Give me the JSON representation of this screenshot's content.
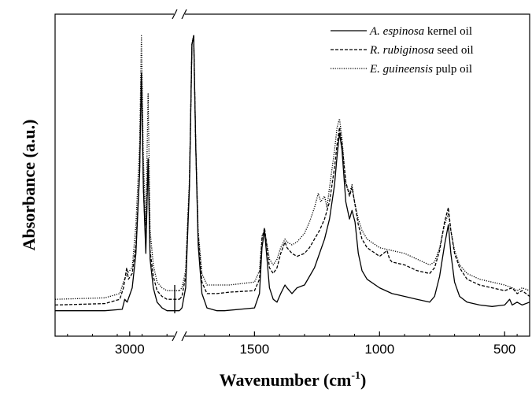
{
  "chart_data": {
    "type": "line",
    "xlabel": "Wavenumber (cm",
    "xlabel_sup": "-1",
    "xlabel_end": ")",
    "ylabel": "Absorbance (a.u.)",
    "x_axis_broken": true,
    "x_break_range": [
      2800,
      1800
    ],
    "x_axis_reversed": true,
    "xlim": [
      3300,
      400
    ],
    "y_ticks_labeled": false,
    "x_ticks": [
      {
        "value": 3000,
        "label": "3000"
      },
      {
        "value": 1500,
        "label": "1500"
      },
      {
        "value": 1000,
        "label": "1000"
      },
      {
        "value": 500,
        "label": "500"
      }
    ],
    "legend_position": "top-right",
    "series": [
      {
        "name": "kernel oil",
        "name_italic": "A. espinosa",
        "style": "solid",
        "points": [
          [
            3300,
            0.02
          ],
          [
            3100,
            0.02
          ],
          [
            3030,
            0.025
          ],
          [
            3020,
            0.06
          ],
          [
            3010,
            0.05
          ],
          [
            2990,
            0.1
          ],
          [
            2975,
            0.22
          ],
          [
            2960,
            0.5
          ],
          [
            2953,
            0.85
          ],
          [
            2945,
            0.45
          ],
          [
            2935,
            0.22
          ],
          [
            2926,
            0.55
          ],
          [
            2918,
            0.2
          ],
          [
            2905,
            0.1
          ],
          [
            2890,
            0.05
          ],
          [
            2870,
            0.03
          ],
          [
            2850,
            0.02
          ],
          [
            2800,
            0.02
          ],
          [
            1800,
            0.02
          ],
          [
            1790,
            0.03
          ],
          [
            1775,
            0.1
          ],
          [
            1760,
            0.45
          ],
          [
            1750,
            0.95
          ],
          [
            1743,
            0.98
          ],
          [
            1735,
            0.6
          ],
          [
            1725,
            0.25
          ],
          [
            1710,
            0.08
          ],
          [
            1690,
            0.03
          ],
          [
            1650,
            0.02
          ],
          [
            1620,
            0.02
          ],
          [
            1500,
            0.03
          ],
          [
            1480,
            0.08
          ],
          [
            1470,
            0.24
          ],
          [
            1460,
            0.3
          ],
          [
            1450,
            0.2
          ],
          [
            1440,
            0.1
          ],
          [
            1425,
            0.06
          ],
          [
            1410,
            0.05
          ],
          [
            1395,
            0.08
          ],
          [
            1378,
            0.11
          ],
          [
            1370,
            0.1
          ],
          [
            1350,
            0.08
          ],
          [
            1330,
            0.1
          ],
          [
            1300,
            0.11
          ],
          [
            1280,
            0.14
          ],
          [
            1260,
            0.17
          ],
          [
            1240,
            0.22
          ],
          [
            1220,
            0.27
          ],
          [
            1200,
            0.34
          ],
          [
            1180,
            0.46
          ],
          [
            1170,
            0.56
          ],
          [
            1160,
            0.64
          ],
          [
            1150,
            0.58
          ],
          [
            1135,
            0.4
          ],
          [
            1120,
            0.34
          ],
          [
            1110,
            0.37
          ],
          [
            1098,
            0.33
          ],
          [
            1085,
            0.22
          ],
          [
            1070,
            0.16
          ],
          [
            1050,
            0.13
          ],
          [
            1000,
            0.1
          ],
          [
            950,
            0.08
          ],
          [
            900,
            0.07
          ],
          [
            850,
            0.06
          ],
          [
            800,
            0.05
          ],
          [
            780,
            0.07
          ],
          [
            760,
            0.14
          ],
          [
            740,
            0.25
          ],
          [
            725,
            0.32
          ],
          [
            715,
            0.22
          ],
          [
            700,
            0.12
          ],
          [
            680,
            0.07
          ],
          [
            650,
            0.05
          ],
          [
            600,
            0.04
          ],
          [
            550,
            0.035
          ],
          [
            500,
            0.04
          ],
          [
            480,
            0.06
          ],
          [
            470,
            0.04
          ],
          [
            450,
            0.05
          ],
          [
            430,
            0.04
          ],
          [
            400,
            0.05
          ]
        ]
      },
      {
        "name": "seed oil",
        "name_italic": "R. rubiginosa",
        "style": "dashed",
        "points": [
          [
            3300,
            0.04
          ],
          [
            3100,
            0.045
          ],
          [
            3040,
            0.06
          ],
          [
            3025,
            0.1
          ],
          [
            3012,
            0.17
          ],
          [
            3005,
            0.13
          ],
          [
            2990,
            0.15
          ],
          [
            2975,
            0.25
          ],
          [
            2960,
            0.5
          ],
          [
            2953,
            0.85
          ],
          [
            2945,
            0.45
          ],
          [
            2935,
            0.25
          ],
          [
            2926,
            0.55
          ],
          [
            2918,
            0.23
          ],
          [
            2905,
            0.14
          ],
          [
            2890,
            0.09
          ],
          [
            2870,
            0.07
          ],
          [
            2850,
            0.06
          ],
          [
            2800,
            0.06
          ],
          [
            1800,
            0.06
          ],
          [
            1790,
            0.07
          ],
          [
            1775,
            0.14
          ],
          [
            1760,
            0.46
          ],
          [
            1750,
            0.95
          ],
          [
            1743,
            0.98
          ],
          [
            1735,
            0.6
          ],
          [
            1725,
            0.28
          ],
          [
            1710,
            0.12
          ],
          [
            1690,
            0.08
          ],
          [
            1650,
            0.08
          ],
          [
            1600,
            0.085
          ],
          [
            1500,
            0.09
          ],
          [
            1480,
            0.13
          ],
          [
            1470,
            0.27
          ],
          [
            1460,
            0.31
          ],
          [
            1450,
            0.24
          ],
          [
            1440,
            0.17
          ],
          [
            1425,
            0.15
          ],
          [
            1410,
            0.17
          ],
          [
            1395,
            0.22
          ],
          [
            1378,
            0.26
          ],
          [
            1370,
            0.24
          ],
          [
            1350,
            0.22
          ],
          [
            1330,
            0.21
          ],
          [
            1300,
            0.22
          ],
          [
            1280,
            0.24
          ],
          [
            1260,
            0.27
          ],
          [
            1240,
            0.3
          ],
          [
            1220,
            0.34
          ],
          [
            1200,
            0.4
          ],
          [
            1180,
            0.52
          ],
          [
            1170,
            0.6
          ],
          [
            1160,
            0.66
          ],
          [
            1150,
            0.6
          ],
          [
            1135,
            0.47
          ],
          [
            1120,
            0.42
          ],
          [
            1110,
            0.45
          ],
          [
            1100,
            0.4
          ],
          [
            1085,
            0.32
          ],
          [
            1070,
            0.27
          ],
          [
            1050,
            0.24
          ],
          [
            1000,
            0.21
          ],
          [
            970,
            0.23
          ],
          [
            960,
            0.2
          ],
          [
            950,
            0.19
          ],
          [
            900,
            0.18
          ],
          [
            850,
            0.16
          ],
          [
            800,
            0.15
          ],
          [
            780,
            0.17
          ],
          [
            760,
            0.23
          ],
          [
            740,
            0.33
          ],
          [
            725,
            0.38
          ],
          [
            715,
            0.3
          ],
          [
            700,
            0.22
          ],
          [
            680,
            0.17
          ],
          [
            650,
            0.13
          ],
          [
            600,
            0.11
          ],
          [
            550,
            0.1
          ],
          [
            500,
            0.09
          ],
          [
            470,
            0.1
          ],
          [
            450,
            0.08
          ],
          [
            430,
            0.09
          ],
          [
            400,
            0.07
          ]
        ]
      },
      {
        "name": "pulp oil",
        "name_italic": "E. guineensis",
        "style": "dotted",
        "points": [
          [
            3300,
            0.06
          ],
          [
            3100,
            0.065
          ],
          [
            3040,
            0.08
          ],
          [
            3025,
            0.12
          ],
          [
            3010,
            0.15
          ],
          [
            2990,
            0.17
          ],
          [
            2975,
            0.32
          ],
          [
            2960,
            0.6
          ],
          [
            2953,
            0.98
          ],
          [
            2945,
            0.55
          ],
          [
            2935,
            0.32
          ],
          [
            2926,
            0.78
          ],
          [
            2918,
            0.3
          ],
          [
            2905,
            0.18
          ],
          [
            2890,
            0.12
          ],
          [
            2870,
            0.1
          ],
          [
            2850,
            0.09
          ],
          [
            2800,
            0.09
          ],
          [
            1800,
            0.09
          ],
          [
            1790,
            0.1
          ],
          [
            1775,
            0.16
          ],
          [
            1760,
            0.48
          ],
          [
            1750,
            0.95
          ],
          [
            1743,
            0.98
          ],
          [
            1735,
            0.6
          ],
          [
            1725,
            0.3
          ],
          [
            1710,
            0.15
          ],
          [
            1690,
            0.11
          ],
          [
            1650,
            0.11
          ],
          [
            1600,
            0.11
          ],
          [
            1500,
            0.12
          ],
          [
            1480,
            0.16
          ],
          [
            1470,
            0.28
          ],
          [
            1460,
            0.3
          ],
          [
            1450,
            0.25
          ],
          [
            1440,
            0.2
          ],
          [
            1425,
            0.18
          ],
          [
            1410,
            0.2
          ],
          [
            1395,
            0.24
          ],
          [
            1378,
            0.27
          ],
          [
            1370,
            0.26
          ],
          [
            1350,
            0.25
          ],
          [
            1330,
            0.26
          ],
          [
            1300,
            0.29
          ],
          [
            1280,
            0.33
          ],
          [
            1260,
            0.38
          ],
          [
            1245,
            0.43
          ],
          [
            1235,
            0.4
          ],
          [
            1220,
            0.42
          ],
          [
            1210,
            0.38
          ],
          [
            1200,
            0.45
          ],
          [
            1180,
            0.58
          ],
          [
            1170,
            0.66
          ],
          [
            1160,
            0.69
          ],
          [
            1150,
            0.62
          ],
          [
            1135,
            0.46
          ],
          [
            1120,
            0.43
          ],
          [
            1110,
            0.46
          ],
          [
            1100,
            0.4
          ],
          [
            1085,
            0.34
          ],
          [
            1070,
            0.3
          ],
          [
            1050,
            0.27
          ],
          [
            1000,
            0.24
          ],
          [
            950,
            0.23
          ],
          [
            900,
            0.22
          ],
          [
            850,
            0.2
          ],
          [
            800,
            0.18
          ],
          [
            780,
            0.19
          ],
          [
            760,
            0.24
          ],
          [
            740,
            0.32
          ],
          [
            725,
            0.36
          ],
          [
            715,
            0.3
          ],
          [
            700,
            0.23
          ],
          [
            680,
            0.18
          ],
          [
            650,
            0.15
          ],
          [
            600,
            0.13
          ],
          [
            550,
            0.12
          ],
          [
            500,
            0.11
          ],
          [
            470,
            0.1
          ],
          [
            450,
            0.09
          ],
          [
            430,
            0.1
          ],
          [
            400,
            0.09
          ]
        ]
      }
    ]
  }
}
